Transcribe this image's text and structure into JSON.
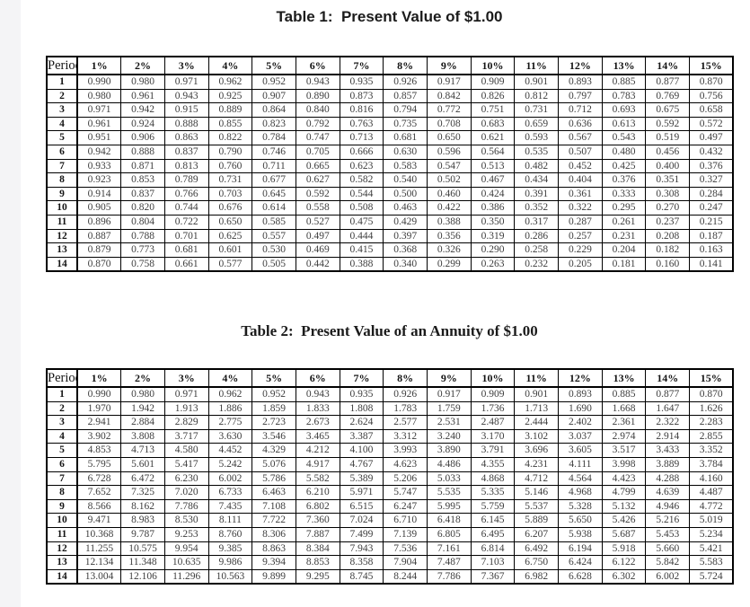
{
  "page": {
    "background_color": "#ffffff",
    "left_strip_color": "#f4f4f6",
    "border_color": "#000000",
    "text_color": "#3d3d3d"
  },
  "tables": [
    {
      "title": "Table 1:  Present Value of $1.00",
      "headers": [
        "Period",
        "1%",
        "2%",
        "3%",
        "4%",
        "5%",
        "6%",
        "7%",
        "8%",
        "9%",
        "10%",
        "11%",
        "12%",
        "13%",
        "14%",
        "15%"
      ],
      "rows": [
        [
          "1",
          "0.990",
          "0.980",
          "0.971",
          "0.962",
          "0.952",
          "0.943",
          "0.935",
          "0.926",
          "0.917",
          "0.909",
          "0.901",
          "0.893",
          "0.885",
          "0.877",
          "0.870"
        ],
        [
          "2",
          "0.980",
          "0.961",
          "0.943",
          "0.925",
          "0.907",
          "0.890",
          "0.873",
          "0.857",
          "0.842",
          "0.826",
          "0.812",
          "0.797",
          "0.783",
          "0.769",
          "0.756"
        ],
        [
          "3",
          "0.971",
          "0.942",
          "0.915",
          "0.889",
          "0.864",
          "0.840",
          "0.816",
          "0.794",
          "0.772",
          "0.751",
          "0.731",
          "0.712",
          "0.693",
          "0.675",
          "0.658"
        ],
        [
          "4",
          "0.961",
          "0.924",
          "0.888",
          "0.855",
          "0.823",
          "0.792",
          "0.763",
          "0.735",
          "0.708",
          "0.683",
          "0.659",
          "0.636",
          "0.613",
          "0.592",
          "0.572"
        ],
        [
          "5",
          "0.951",
          "0.906",
          "0.863",
          "0.822",
          "0.784",
          "0.747",
          "0.713",
          "0.681",
          "0.650",
          "0.621",
          "0.593",
          "0.567",
          "0.543",
          "0.519",
          "0.497"
        ],
        [
          "6",
          "0.942",
          "0.888",
          "0.837",
          "0.790",
          "0.746",
          "0.705",
          "0.666",
          "0.630",
          "0.596",
          "0.564",
          "0.535",
          "0.507",
          "0.480",
          "0.456",
          "0.432"
        ],
        [
          "7",
          "0.933",
          "0.871",
          "0.813",
          "0.760",
          "0.711",
          "0.665",
          "0.623",
          "0.583",
          "0.547",
          "0.513",
          "0.482",
          "0.452",
          "0.425",
          "0.400",
          "0.376"
        ],
        [
          "8",
          "0.923",
          "0.853",
          "0.789",
          "0.731",
          "0.677",
          "0.627",
          "0.582",
          "0.540",
          "0.502",
          "0.467",
          "0.434",
          "0.404",
          "0.376",
          "0.351",
          "0.327"
        ],
        [
          "9",
          "0.914",
          "0.837",
          "0.766",
          "0.703",
          "0.645",
          "0.592",
          "0.544",
          "0.500",
          "0.460",
          "0.424",
          "0.391",
          "0.361",
          "0.333",
          "0.308",
          "0.284"
        ],
        [
          "10",
          "0.905",
          "0.820",
          "0.744",
          "0.676",
          "0.614",
          "0.558",
          "0.508",
          "0.463",
          "0.422",
          "0.386",
          "0.352",
          "0.322",
          "0.295",
          "0.270",
          "0.247"
        ],
        [
          "11",
          "0.896",
          "0.804",
          "0.722",
          "0.650",
          "0.585",
          "0.527",
          "0.475",
          "0.429",
          "0.388",
          "0.350",
          "0.317",
          "0.287",
          "0.261",
          "0.237",
          "0.215"
        ],
        [
          "12",
          "0.887",
          "0.788",
          "0.701",
          "0.625",
          "0.557",
          "0.497",
          "0.444",
          "0.397",
          "0.356",
          "0.319",
          "0.286",
          "0.257",
          "0.231",
          "0.208",
          "0.187"
        ],
        [
          "13",
          "0.879",
          "0.773",
          "0.681",
          "0.601",
          "0.530",
          "0.469",
          "0.415",
          "0.368",
          "0.326",
          "0.290",
          "0.258",
          "0.229",
          "0.204",
          "0.182",
          "0.163"
        ],
        [
          "14",
          "0.870",
          "0.758",
          "0.661",
          "0.577",
          "0.505",
          "0.442",
          "0.388",
          "0.340",
          "0.299",
          "0.263",
          "0.232",
          "0.205",
          "0.181",
          "0.160",
          "0.141"
        ]
      ]
    },
    {
      "title": "Table 2:  Present Value of an Annuity of $1.00",
      "headers": [
        "Period",
        "1%",
        "2%",
        "3%",
        "4%",
        "5%",
        "6%",
        "7%",
        "8%",
        "9%",
        "10%",
        "11%",
        "12%",
        "13%",
        "14%",
        "15%"
      ],
      "rows": [
        [
          "1",
          "0.990",
          "0.980",
          "0.971",
          "0.962",
          "0.952",
          "0.943",
          "0.935",
          "0.926",
          "0.917",
          "0.909",
          "0.901",
          "0.893",
          "0.885",
          "0.877",
          "0.870"
        ],
        [
          "2",
          "1.970",
          "1.942",
          "1.913",
          "1.886",
          "1.859",
          "1.833",
          "1.808",
          "1.783",
          "1.759",
          "1.736",
          "1.713",
          "1.690",
          "1.668",
          "1.647",
          "1.626"
        ],
        [
          "3",
          "2.941",
          "2.884",
          "2.829",
          "2.775",
          "2.723",
          "2.673",
          "2.624",
          "2.577",
          "2.531",
          "2.487",
          "2.444",
          "2.402",
          "2.361",
          "2.322",
          "2.283"
        ],
        [
          "4",
          "3.902",
          "3.808",
          "3.717",
          "3.630",
          "3.546",
          "3.465",
          "3.387",
          "3.312",
          "3.240",
          "3.170",
          "3.102",
          "3.037",
          "2.974",
          "2.914",
          "2.855"
        ],
        [
          "5",
          "4.853",
          "4.713",
          "4.580",
          "4.452",
          "4.329",
          "4.212",
          "4.100",
          "3.993",
          "3.890",
          "3.791",
          "3.696",
          "3.605",
          "3.517",
          "3.433",
          "3.352"
        ],
        [
          "6",
          "5.795",
          "5.601",
          "5.417",
          "5.242",
          "5.076",
          "4.917",
          "4.767",
          "4.623",
          "4.486",
          "4.355",
          "4.231",
          "4.111",
          "3.998",
          "3.889",
          "3.784"
        ],
        [
          "7",
          "6.728",
          "6.472",
          "6.230",
          "6.002",
          "5.786",
          "5.582",
          "5.389",
          "5.206",
          "5.033",
          "4.868",
          "4.712",
          "4.564",
          "4.423",
          "4.288",
          "4.160"
        ],
        [
          "8",
          "7.652",
          "7.325",
          "7.020",
          "6.733",
          "6.463",
          "6.210",
          "5.971",
          "5.747",
          "5.535",
          "5.335",
          "5.146",
          "4.968",
          "4.799",
          "4.639",
          "4.487"
        ],
        [
          "9",
          "8.566",
          "8.162",
          "7.786",
          "7.435",
          "7.108",
          "6.802",
          "6.515",
          "6.247",
          "5.995",
          "5.759",
          "5.537",
          "5.328",
          "5.132",
          "4.946",
          "4.772"
        ],
        [
          "10",
          "9.471",
          "8.983",
          "8.530",
          "8.111",
          "7.722",
          "7.360",
          "7.024",
          "6.710",
          "6.418",
          "6.145",
          "5.889",
          "5.650",
          "5.426",
          "5.216",
          "5.019"
        ],
        [
          "11",
          "10.368",
          "9.787",
          "9.253",
          "8.760",
          "8.306",
          "7.887",
          "7.499",
          "7.139",
          "6.805",
          "6.495",
          "6.207",
          "5.938",
          "5.687",
          "5.453",
          "5.234"
        ],
        [
          "12",
          "11.255",
          "10.575",
          "9.954",
          "9.385",
          "8.863",
          "8.384",
          "7.943",
          "7.536",
          "7.161",
          "6.814",
          "6.492",
          "6.194",
          "5.918",
          "5.660",
          "5.421"
        ],
        [
          "13",
          "12.134",
          "11.348",
          "10.635",
          "9.986",
          "9.394",
          "8.853",
          "8.358",
          "7.904",
          "7.487",
          "7.103",
          "6.750",
          "6.424",
          "6.122",
          "5.842",
          "5.583"
        ],
        [
          "14",
          "13.004",
          "12.106",
          "11.296",
          "10.563",
          "9.899",
          "9.295",
          "8.745",
          "8.244",
          "7.786",
          "7.367",
          "6.982",
          "6.628",
          "6.302",
          "6.002",
          "5.724"
        ]
      ]
    }
  ]
}
